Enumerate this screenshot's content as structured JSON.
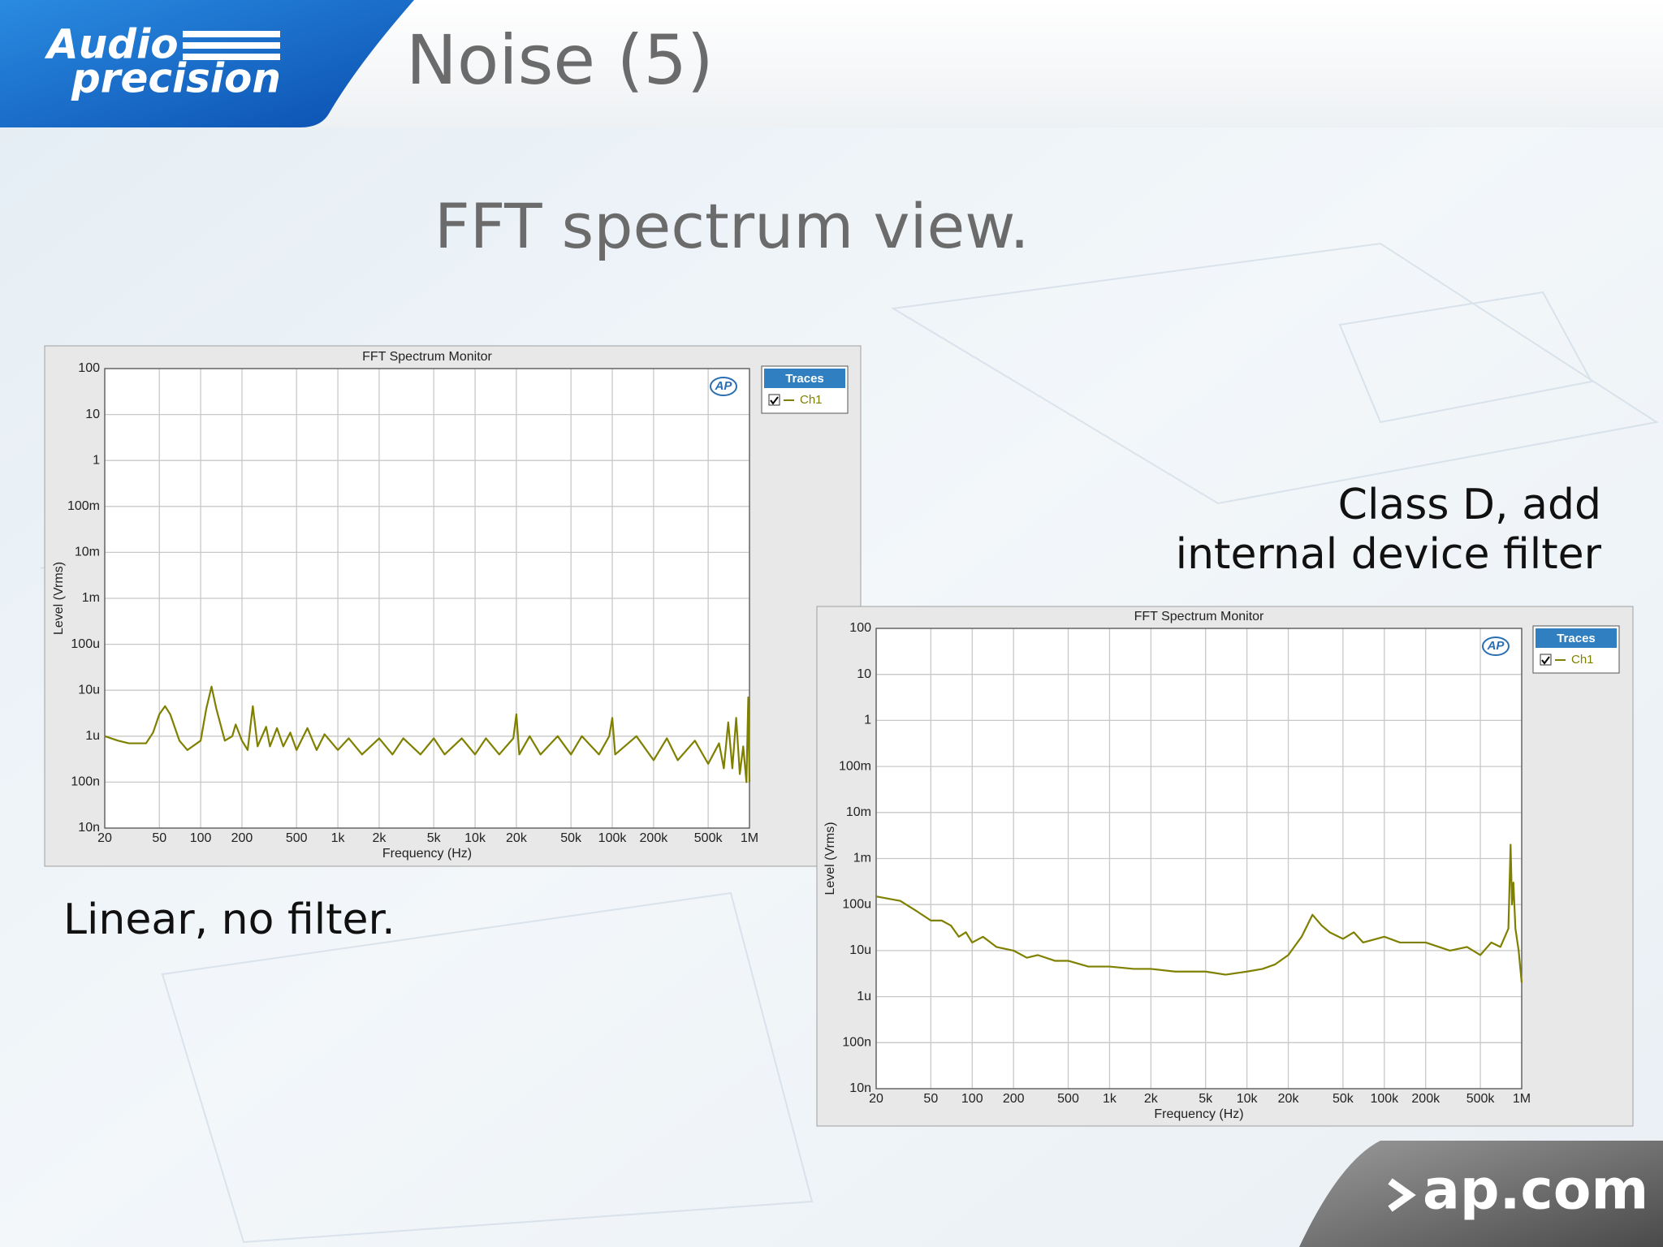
{
  "slide": {
    "title": "Noise (5)",
    "subtitle": "FFT spectrum view.",
    "caption_left": "Linear, no filter.",
    "caption_right": [
      "Class D, add",
      "internal device filter"
    ],
    "logo": [
      "Audio",
      "precision"
    ],
    "footer": "ap.com"
  },
  "chart_data": [
    {
      "type": "line",
      "title": "FFT Spectrum Monitor",
      "x_label": "Frequency (Hz)",
      "y_label": "Level (Vrms)",
      "legend_title": "Traces",
      "logo_text": "AP",
      "xscale": "log",
      "yscale": "log",
      "grid": true,
      "legend": "right",
      "xlim": [
        20,
        1000000
      ],
      "ylim": [
        1e-08,
        100
      ],
      "xticks": [
        20,
        50,
        100,
        200,
        500,
        {
          "value": 1000,
          "label": "1k"
        },
        {
          "value": 2000,
          "label": "2k"
        },
        {
          "value": 5000,
          "label": "5k"
        },
        {
          "value": 10000,
          "label": "10k"
        },
        {
          "value": 20000,
          "label": "20k"
        },
        {
          "value": 50000,
          "label": "50k"
        },
        {
          "value": 100000,
          "label": "100k"
        },
        {
          "value": 200000,
          "label": "200k"
        },
        {
          "value": 500000,
          "label": "500k"
        },
        {
          "value": 1000000,
          "label": "1M"
        }
      ],
      "yticks": [
        {
          "value": 1e-08,
          "label": "10n"
        },
        {
          "value": 1e-07,
          "label": "100n"
        },
        {
          "value": 1e-06,
          "label": "1u"
        },
        {
          "value": 1e-05,
          "label": "10u"
        },
        {
          "value": 0.0001,
          "label": "100u"
        },
        {
          "value": 0.001,
          "label": "1m"
        },
        {
          "value": 0.01,
          "label": "10m"
        },
        {
          "value": 0.1,
          "label": "100m"
        },
        1,
        10,
        100
      ],
      "x": [
        20,
        25,
        30,
        40,
        45,
        50,
        55,
        60,
        70,
        80,
        100,
        110,
        120,
        130,
        150,
        170,
        180,
        200,
        220,
        240,
        260,
        300,
        320,
        360,
        400,
        450,
        500,
        600,
        700,
        800,
        1000,
        1200,
        1500,
        2000,
        2500,
        3000,
        4000,
        5000,
        6000,
        8000,
        10000,
        12000,
        15000,
        19000,
        20000,
        21000,
        25000,
        30000,
        40000,
        50000,
        60000,
        80000,
        95000,
        100000,
        105000,
        150000,
        200000,
        250000,
        300000,
        400000,
        500000,
        600000,
        650000,
        700000,
        750000,
        800000,
        850000,
        900000,
        950000,
        980000,
        1000000
      ],
      "series": [
        {
          "name": "Ch1",
          "color": "#808000",
          "values": [
            1e-06,
            8e-07,
            7e-07,
            7e-07,
            1.2e-06,
            3e-06,
            4.5e-06,
            3e-06,
            8e-07,
            5e-07,
            8e-07,
            4e-06,
            1.2e-05,
            4e-06,
            8e-07,
            1e-06,
            1.8e-06,
            8e-07,
            5e-07,
            4.5e-06,
            6e-07,
            1.6e-06,
            6e-07,
            1.5e-06,
            6e-07,
            1.2e-06,
            5e-07,
            1.5e-06,
            5e-07,
            1.1e-06,
            5e-07,
            9e-07,
            4e-07,
            9e-07,
            4e-07,
            9e-07,
            4e-07,
            9e-07,
            4e-07,
            9e-07,
            4e-07,
            9e-07,
            4e-07,
            9e-07,
            3e-06,
            4e-07,
            1e-06,
            4e-07,
            1e-06,
            4e-07,
            1e-06,
            4e-07,
            1e-06,
            2.5e-06,
            4e-07,
            1e-06,
            3e-07,
            9e-07,
            3e-07,
            8e-07,
            2.5e-07,
            7e-07,
            2e-07,
            2e-06,
            2e-07,
            2.5e-06,
            1.5e-07,
            6e-07,
            1e-07,
            7e-06,
            1e-07
          ]
        }
      ]
    },
    {
      "type": "line",
      "title": "FFT Spectrum Monitor",
      "x_label": "Frequency (Hz)",
      "y_label": "Level (Vrms)",
      "legend_title": "Traces",
      "logo_text": "AP",
      "xscale": "log",
      "yscale": "log",
      "grid": true,
      "legend": "right",
      "xlim": [
        20,
        1000000
      ],
      "ylim": [
        1e-08,
        100
      ],
      "xticks": [
        20,
        50,
        100,
        200,
        500,
        {
          "value": 1000,
          "label": "1k"
        },
        {
          "value": 2000,
          "label": "2k"
        },
        {
          "value": 5000,
          "label": "5k"
        },
        {
          "value": 10000,
          "label": "10k"
        },
        {
          "value": 20000,
          "label": "20k"
        },
        {
          "value": 50000,
          "label": "50k"
        },
        {
          "value": 100000,
          "label": "100k"
        },
        {
          "value": 200000,
          "label": "200k"
        },
        {
          "value": 500000,
          "label": "500k"
        },
        {
          "value": 1000000,
          "label": "1M"
        }
      ],
      "yticks": [
        {
          "value": 1e-08,
          "label": "10n"
        },
        {
          "value": 1e-07,
          "label": "100n"
        },
        {
          "value": 1e-06,
          "label": "1u"
        },
        {
          "value": 1e-05,
          "label": "10u"
        },
        {
          "value": 0.0001,
          "label": "100u"
        },
        {
          "value": 0.001,
          "label": "1m"
        },
        {
          "value": 0.01,
          "label": "10m"
        },
        {
          "value": 0.1,
          "label": "100m"
        },
        1,
        10,
        100
      ],
      "x": [
        20,
        30,
        40,
        50,
        60,
        70,
        80,
        90,
        100,
        120,
        150,
        200,
        250,
        300,
        400,
        500,
        700,
        1000,
        1500,
        2000,
        3000,
        5000,
        7000,
        10000,
        13000,
        16000,
        20000,
        25000,
        30000,
        35000,
        40000,
        50000,
        60000,
        70000,
        100000,
        130000,
        200000,
        300000,
        400000,
        500000,
        600000,
        700000,
        800000,
        830000,
        850000,
        870000,
        900000,
        950000,
        1000000
      ],
      "series": [
        {
          "name": "Ch1",
          "color": "#808000",
          "values": [
            0.00015,
            0.00012,
            7e-05,
            4.5e-05,
            4.5e-05,
            3.5e-05,
            2e-05,
            2.5e-05,
            1.5e-05,
            2e-05,
            1.2e-05,
            1e-05,
            7e-06,
            8e-06,
            6e-06,
            6e-06,
            4.5e-06,
            4.5e-06,
            4e-06,
            4e-06,
            3.5e-06,
            3.5e-06,
            3e-06,
            3.5e-06,
            4e-06,
            5e-06,
            8e-06,
            2e-05,
            6e-05,
            3.5e-05,
            2.5e-05,
            1.8e-05,
            2.5e-05,
            1.5e-05,
            2e-05,
            1.5e-05,
            1.5e-05,
            1e-05,
            1.2e-05,
            8e-06,
            1.5e-05,
            1.2e-05,
            3e-05,
            0.002,
            0.0001,
            0.0003,
            3e-05,
            1e-05,
            2e-06
          ]
        }
      ]
    }
  ]
}
